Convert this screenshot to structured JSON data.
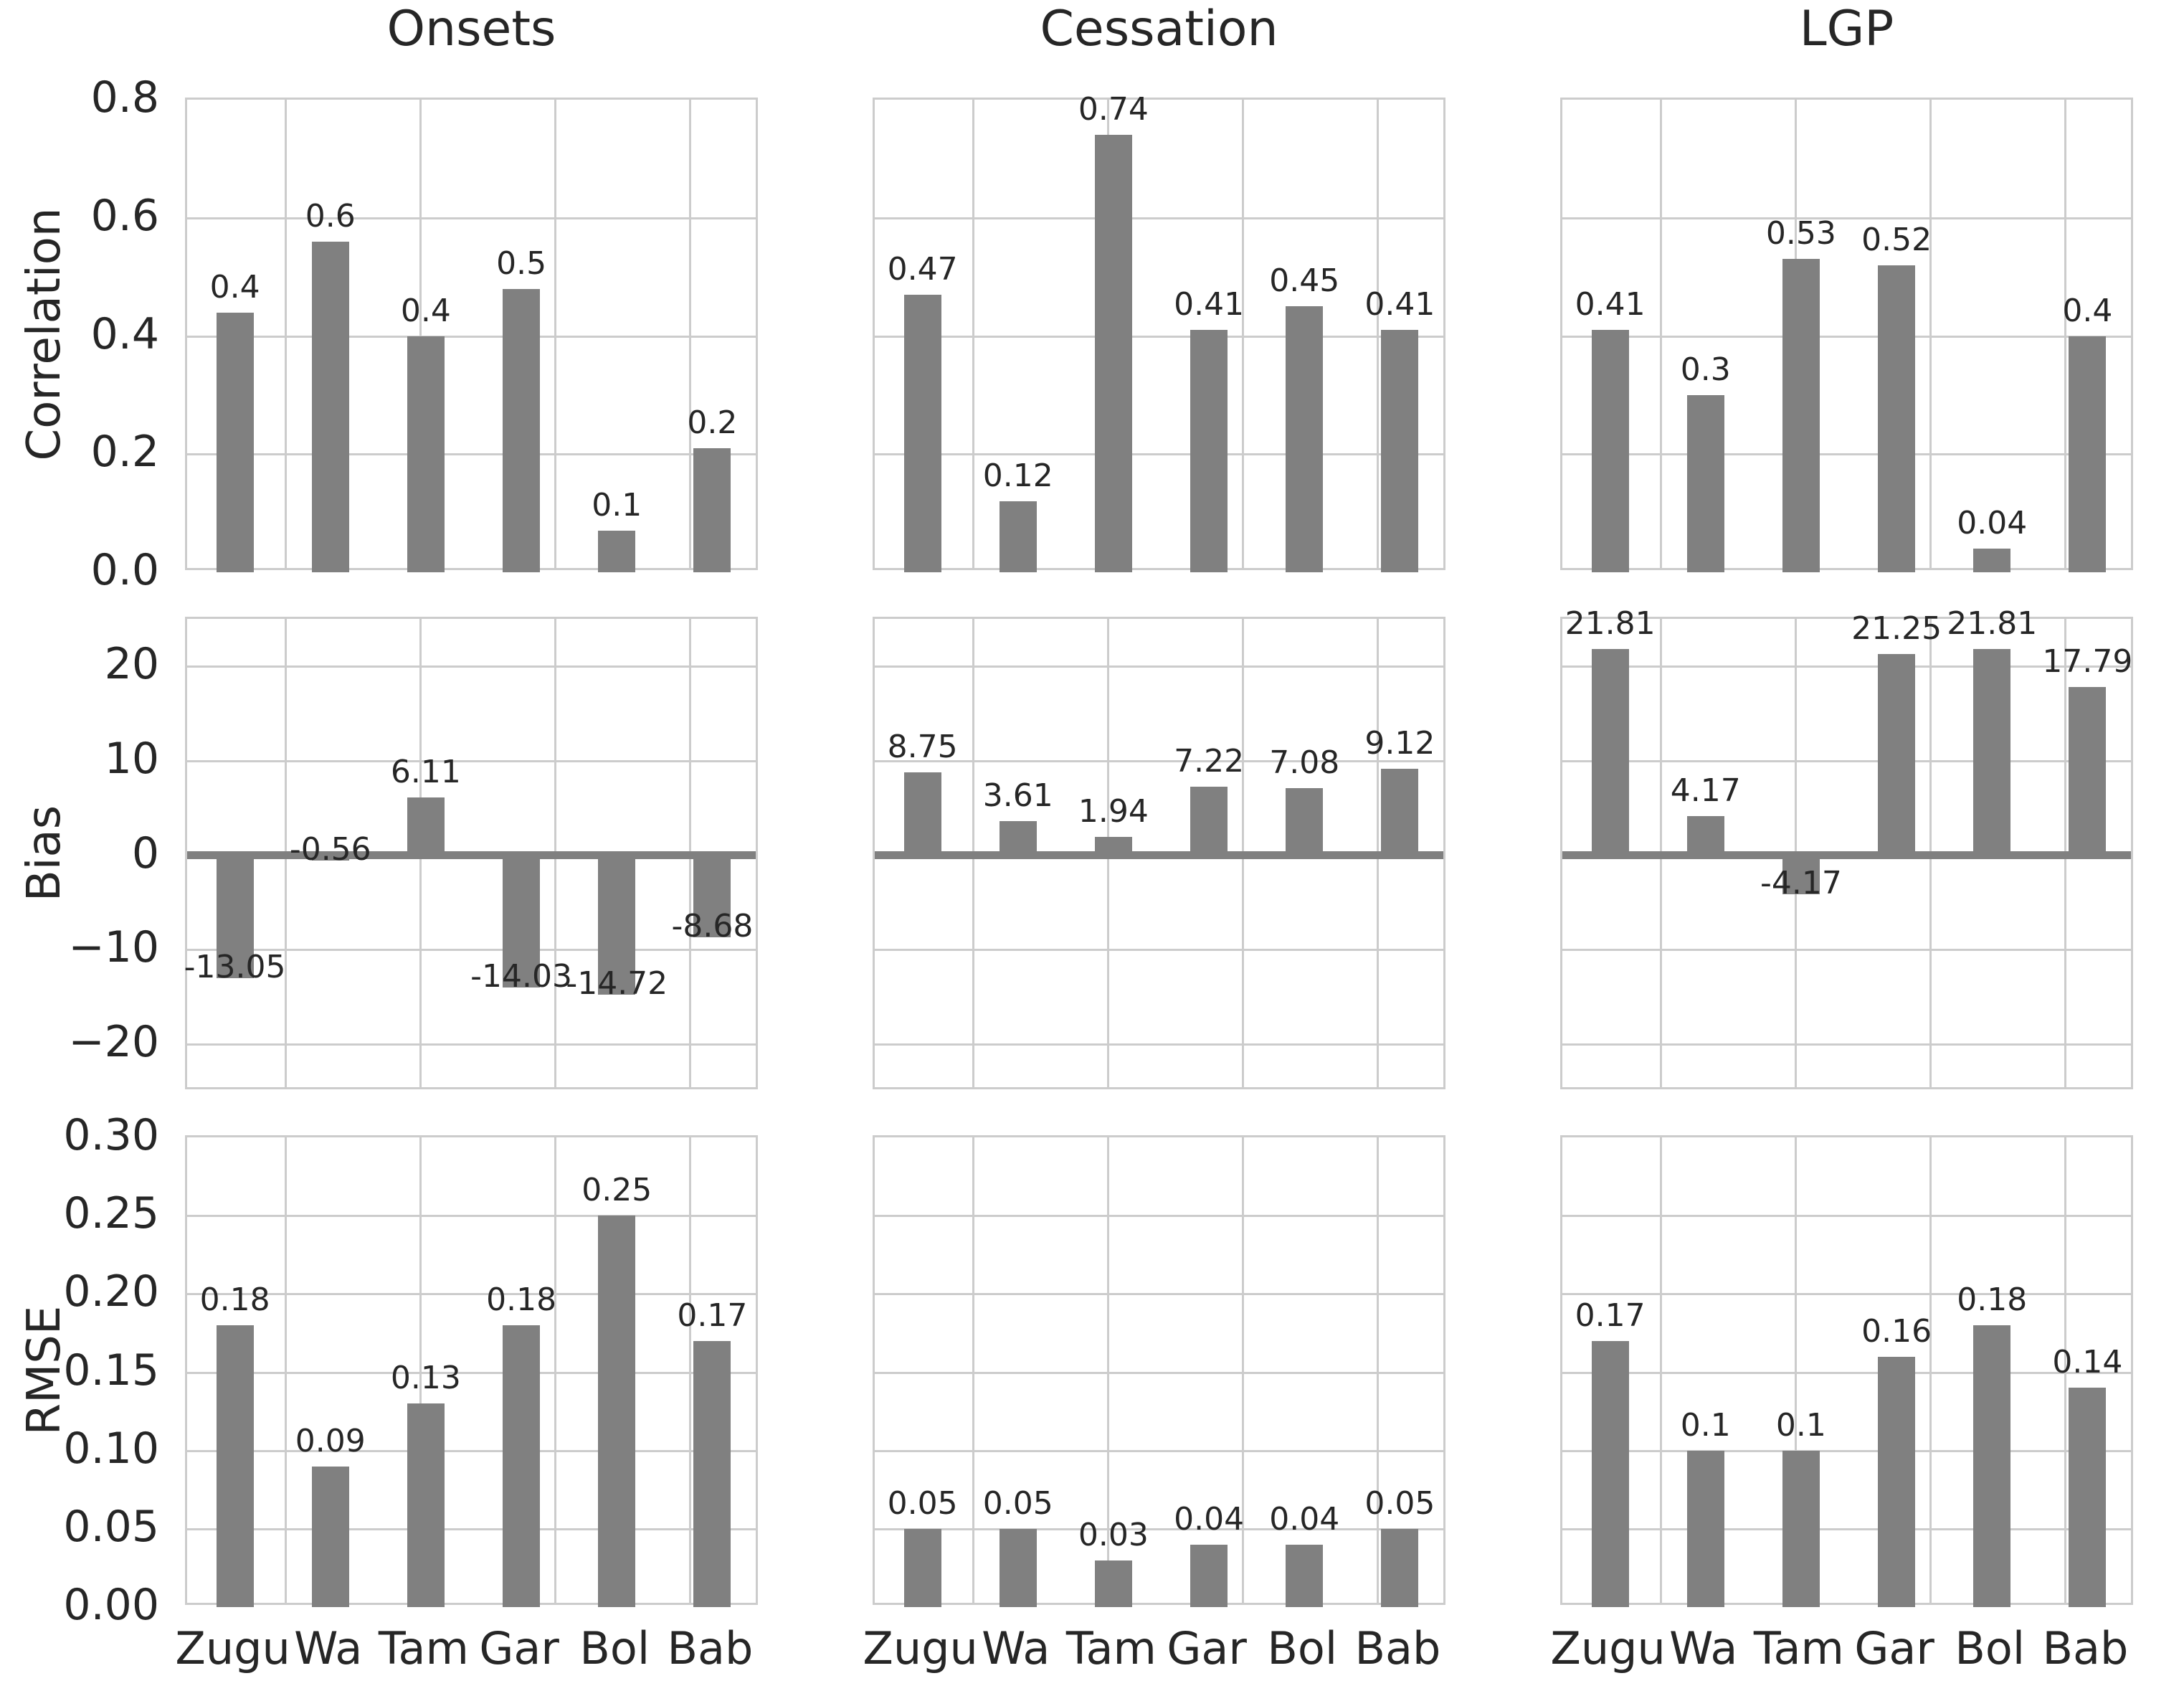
{
  "figure": {
    "background": "#ffffff",
    "bar_color": "#808080",
    "grid_color": "#cccccc",
    "text_color": "#262626",
    "zero_line_color": "#808080"
  },
  "chart_data": {
    "type": "bar",
    "grid": true,
    "legend_position": "none",
    "categories": [
      "Zugu",
      "Wa",
      "Tam",
      "Gar",
      "Bol",
      "Bab"
    ],
    "columns": [
      "Onsets",
      "Cessation",
      "LGP"
    ],
    "rows": [
      {
        "ylabel": "Correlation",
        "ylim": [
          0,
          0.8
        ],
        "yticks": [
          {
            "v": 0.8,
            "label": "0.8"
          },
          {
            "v": 0.6,
            "label": "0.6"
          },
          {
            "v": 0.4,
            "label": "0.4"
          },
          {
            "v": 0.2,
            "label": "0.2"
          },
          {
            "v": 0.0,
            "label": "0.0"
          }
        ],
        "zero_line": false,
        "cells": [
          {
            "column": "Onsets",
            "values": [
              0.44,
              0.56,
              0.4,
              0.48,
              0.07,
              0.21
            ],
            "bar_labels": [
              "0.4",
              "0.6",
              "0.4",
              "0.5",
              "0.1",
              "0.2"
            ]
          },
          {
            "column": "Cessation",
            "values": [
              0.47,
              0.12,
              0.74,
              0.41,
              0.45,
              0.41
            ],
            "bar_labels": [
              "0.47",
              "0.12",
              "0.74",
              "0.41",
              "0.45",
              "0.41"
            ]
          },
          {
            "column": "LGP",
            "values": [
              0.41,
              0.3,
              0.53,
              0.52,
              0.04,
              0.4
            ],
            "bar_labels": [
              "0.41",
              "0.3",
              "0.53",
              "0.52",
              "0.04",
              "0.4"
            ]
          }
        ]
      },
      {
        "ylabel": "Bias",
        "ylim": [
          -25,
          25
        ],
        "yticks": [
          {
            "v": 20,
            "label": "20"
          },
          {
            "v": 10,
            "label": "10"
          },
          {
            "v": 0,
            "label": "0"
          },
          {
            "v": -10,
            "label": "−10"
          },
          {
            "v": -20,
            "label": "−20"
          }
        ],
        "zero_line": true,
        "cells": [
          {
            "column": "Onsets",
            "values": [
              -13.05,
              -0.56,
              6.11,
              -14.03,
              -14.72,
              -8.68
            ],
            "bar_labels": [
              "-13.05",
              "-0.56",
              "6.11",
              "-14.03",
              "-14.72",
              "-8.68"
            ]
          },
          {
            "column": "Cessation",
            "values": [
              8.75,
              3.61,
              1.94,
              7.22,
              7.08,
              9.12
            ],
            "bar_labels": [
              "8.75",
              "3.61",
              "1.94",
              "7.22",
              "7.08",
              "9.12"
            ]
          },
          {
            "column": "LGP",
            "values": [
              21.81,
              4.17,
              -4.17,
              21.25,
              21.81,
              17.79
            ],
            "bar_labels": [
              "21.81",
              "4.17",
              "-4.17",
              "21.25",
              "21.81",
              "17.79"
            ]
          }
        ]
      },
      {
        "ylabel": "RMSE",
        "ylim": [
          0,
          0.3
        ],
        "yticks": [
          {
            "v": 0.3,
            "label": "0.30"
          },
          {
            "v": 0.25,
            "label": "0.25"
          },
          {
            "v": 0.2,
            "label": "0.20"
          },
          {
            "v": 0.15,
            "label": "0.15"
          },
          {
            "v": 0.1,
            "label": "0.10"
          },
          {
            "v": 0.05,
            "label": "0.05"
          },
          {
            "v": 0.0,
            "label": "0.00"
          }
        ],
        "zero_line": false,
        "cells": [
          {
            "column": "Onsets",
            "values": [
              0.18,
              0.09,
              0.13,
              0.18,
              0.25,
              0.17
            ],
            "bar_labels": [
              "0.18",
              "0.09",
              "0.13",
              "0.18",
              "0.25",
              "0.17"
            ]
          },
          {
            "column": "Cessation",
            "values": [
              0.05,
              0.05,
              0.03,
              0.04,
              0.04,
              0.05
            ],
            "bar_labels": [
              "0.05",
              "0.05",
              "0.03",
              "0.04",
              "0.04",
              "0.05"
            ]
          },
          {
            "column": "LGP",
            "values": [
              0.17,
              0.1,
              0.1,
              0.16,
              0.18,
              0.14
            ],
            "bar_labels": [
              "0.17",
              "0.1",
              "0.1",
              "0.16",
              "0.18",
              "0.14"
            ]
          }
        ]
      }
    ]
  }
}
